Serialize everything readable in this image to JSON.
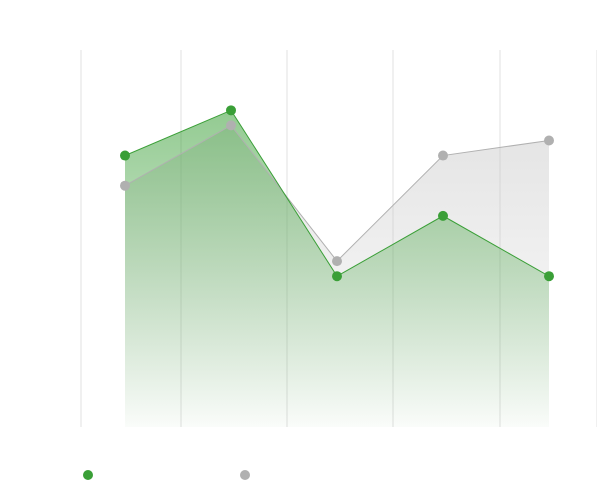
{
  "chart_data": {
    "type": "area",
    "x": [
      1,
      2,
      3,
      4,
      5
    ],
    "series": [
      {
        "values": [
          72,
          84,
          40,
          56,
          40
        ],
        "color": "#3a9f37"
      },
      {
        "values": [
          64,
          80,
          44,
          72,
          76
        ],
        "color": "#b0b0b0"
      }
    ],
    "ylim": [
      0,
      100
    ],
    "xlabel": "",
    "ylabel": "",
    "grid": "vertical",
    "legend": "bottom-left",
    "markers": true
  },
  "legend": {
    "items": [
      {
        "label": ""
      },
      {
        "label": ""
      }
    ]
  }
}
